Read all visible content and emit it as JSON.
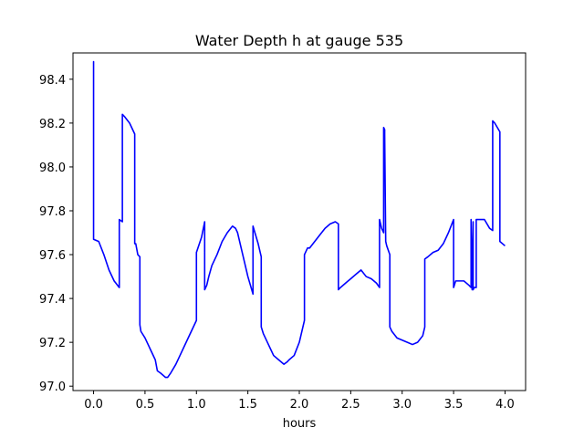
{
  "chart_data": {
    "type": "line",
    "title": "Water Depth h at gauge 535",
    "xlabel": "hours",
    "ylabel": "",
    "xlim": [
      -0.2,
      4.2
    ],
    "ylim": [
      96.98,
      98.52
    ],
    "xticks": [
      0.0,
      0.5,
      1.0,
      1.5,
      2.0,
      2.5,
      3.0,
      3.5,
      4.0
    ],
    "xtick_labels": [
      "0.0",
      "0.5",
      "1.0",
      "1.5",
      "2.0",
      "2.5",
      "3.0",
      "3.5",
      "4.0"
    ],
    "yticks": [
      97.0,
      97.2,
      97.4,
      97.6,
      97.8,
      98.0,
      98.2,
      98.4
    ],
    "ytick_labels": [
      "97.0",
      "97.2",
      "97.4",
      "97.6",
      "97.8",
      "98.0",
      "98.2",
      "98.4"
    ],
    "grid": false,
    "series": [
      {
        "color": "#0000ff",
        "x": [
          0.0,
          0.0,
          0.0,
          0.0,
          0.05,
          0.1,
          0.15,
          0.2,
          0.25,
          0.25,
          0.28,
          0.28,
          0.3,
          0.35,
          0.4,
          0.4,
          0.41,
          0.43,
          0.45,
          0.45,
          0.46,
          0.5,
          0.55,
          0.6,
          0.62,
          0.65,
          0.7,
          0.72,
          0.75,
          0.8,
          0.85,
          0.9,
          0.95,
          1.0,
          1.0,
          1.05,
          1.08,
          1.08,
          1.1,
          1.12,
          1.15,
          1.2,
          1.25,
          1.3,
          1.35,
          1.38,
          1.4,
          1.45,
          1.5,
          1.55,
          1.55,
          1.6,
          1.63,
          1.63,
          1.65,
          1.7,
          1.75,
          1.8,
          1.85,
          1.88,
          1.9,
          1.95,
          2.0,
          2.05,
          2.05,
          2.08,
          2.1,
          2.15,
          2.2,
          2.25,
          2.3,
          2.35,
          2.38,
          2.38,
          2.4,
          2.45,
          2.5,
          2.55,
          2.6,
          2.65,
          2.7,
          2.75,
          2.78,
          2.78,
          2.8,
          2.82,
          2.82,
          2.83,
          2.83,
          2.84,
          2.85,
          2.88,
          2.88,
          2.9,
          2.95,
          3.0,
          3.05,
          3.1,
          3.15,
          3.2,
          3.22,
          3.22,
          3.25,
          3.3,
          3.35,
          3.4,
          3.45,
          3.5,
          3.5,
          3.52,
          3.55,
          3.6,
          3.65,
          3.67,
          3.67,
          3.68,
          3.69,
          3.69,
          3.7,
          3.72,
          3.72,
          3.75,
          3.8,
          3.85,
          3.88,
          3.88,
          3.9,
          3.95,
          3.95,
          4.0
        ],
        "y": [
          97.99,
          98.48,
          97.99,
          97.67,
          97.66,
          97.6,
          97.53,
          97.48,
          97.45,
          97.76,
          97.75,
          98.24,
          98.23,
          98.2,
          98.15,
          97.65,
          97.65,
          97.6,
          97.59,
          97.28,
          97.25,
          97.22,
          97.17,
          97.12,
          97.07,
          97.06,
          97.04,
          97.04,
          97.06,
          97.1,
          97.15,
          97.2,
          97.25,
          97.3,
          97.61,
          97.68,
          97.75,
          97.44,
          97.46,
          97.5,
          97.55,
          97.6,
          97.66,
          97.7,
          97.73,
          97.72,
          97.7,
          97.6,
          97.5,
          97.42,
          97.73,
          97.65,
          97.59,
          97.27,
          97.24,
          97.19,
          97.14,
          97.12,
          97.1,
          97.11,
          97.12,
          97.14,
          97.2,
          97.3,
          97.6,
          97.63,
          97.63,
          97.66,
          97.69,
          97.72,
          97.74,
          97.75,
          97.74,
          97.44,
          97.45,
          97.47,
          97.49,
          97.51,
          97.53,
          97.5,
          97.49,
          97.47,
          97.45,
          97.76,
          97.72,
          97.7,
          98.18,
          98.17,
          98.15,
          97.66,
          97.64,
          97.6,
          97.27,
          97.25,
          97.22,
          97.21,
          97.2,
          97.19,
          97.2,
          97.23,
          97.27,
          97.58,
          97.59,
          97.61,
          97.62,
          97.65,
          97.7,
          97.76,
          97.45,
          97.48,
          97.48,
          97.48,
          97.46,
          97.45,
          97.76,
          97.44,
          97.75,
          97.44,
          97.45,
          97.45,
          97.76,
          97.76,
          97.76,
          97.72,
          97.71,
          98.21,
          98.2,
          98.16,
          97.66,
          97.64
        ]
      }
    ]
  }
}
